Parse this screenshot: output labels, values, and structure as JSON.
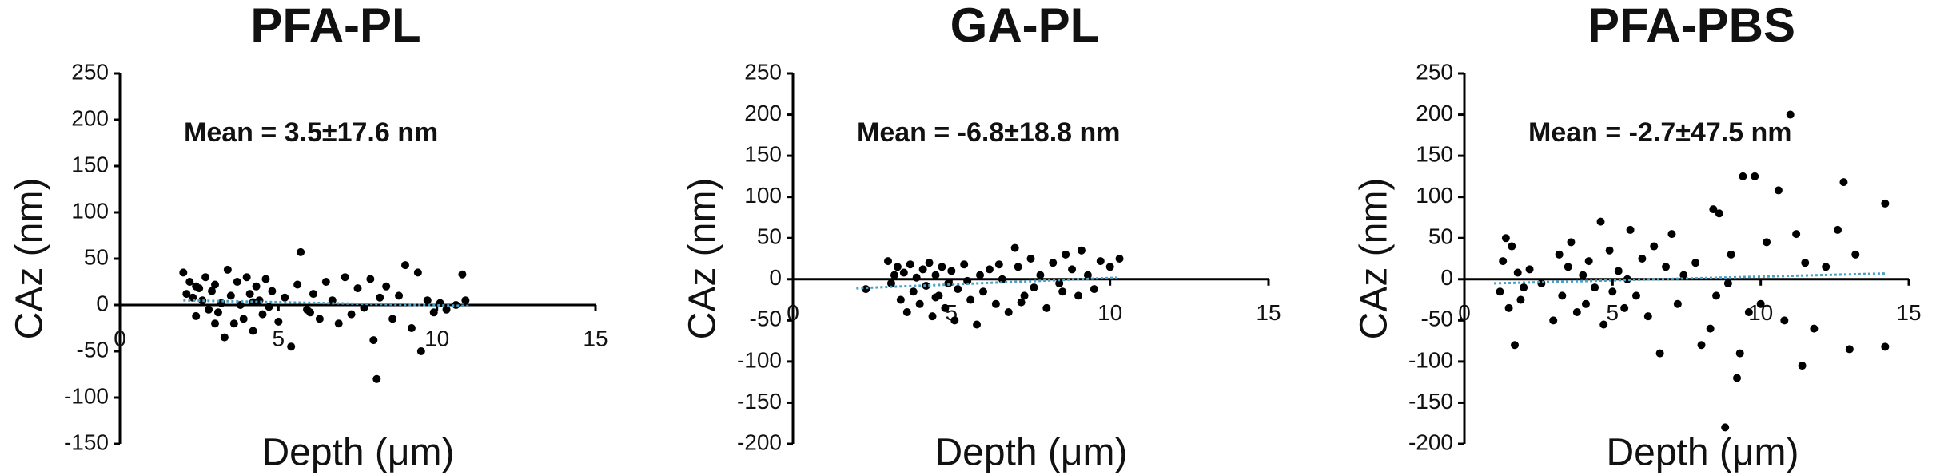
{
  "chart_data": [
    {
      "type": "scatter",
      "title": "PFA-PL",
      "annotation": "Mean = 3.5±17.6 nm",
      "xlabel": "Depth (μm)",
      "ylabel": "CAz (nm)",
      "xlim": [
        0,
        15
      ],
      "xticks": [
        0,
        5,
        10,
        15
      ],
      "ylim": [
        -150,
        250
      ],
      "yticks": [
        -150,
        -100,
        -50,
        0,
        50,
        100,
        150,
        200,
        250
      ],
      "color": "#000000",
      "x": [
        2.0,
        2.1,
        2.2,
        2.3,
        2.4,
        2.5,
        2.6,
        2.7,
        2.8,
        2.9,
        3.0,
        3.1,
        3.2,
        3.3,
        3.4,
        3.5,
        3.6,
        3.7,
        3.8,
        3.9,
        4.0,
        4.1,
        4.2,
        4.3,
        4.4,
        4.5,
        4.6,
        4.7,
        4.8,
        5.0,
        5.2,
        5.4,
        5.6,
        5.7,
        5.9,
        6.1,
        6.3,
        6.5,
        6.7,
        6.9,
        7.1,
        7.3,
        7.5,
        7.7,
        7.9,
        8.0,
        8.1,
        8.2,
        8.4,
        8.6,
        8.8,
        9.0,
        9.2,
        9.4,
        9.5,
        9.7,
        9.9,
        10.1,
        10.3,
        10.6,
        10.8,
        10.9,
        3.0,
        4.2,
        6.0,
        2.4
      ],
      "values": [
        35,
        12,
        25,
        8,
        -12,
        18,
        5,
        30,
        -5,
        15,
        22,
        -8,
        2,
        -35,
        38,
        10,
        -20,
        25,
        0,
        -15,
        30,
        12,
        -28,
        20,
        5,
        -10,
        28,
        -2,
        15,
        -18,
        8,
        -45,
        22,
        57,
        -5,
        12,
        -15,
        25,
        5,
        -20,
        30,
        -10,
        18,
        -3,
        28,
        -38,
        -80,
        8,
        20,
        -15,
        10,
        43,
        -25,
        35,
        -50,
        5,
        -8,
        2,
        -5,
        0,
        33,
        5,
        -20,
        3,
        -8,
        20
      ],
      "trendline": {
        "x": [
          2,
          11
        ],
        "values": [
          5,
          -1
        ],
        "color": "#4a9fc4"
      }
    },
    {
      "type": "scatter",
      "title": "GA-PL",
      "annotation": "Mean = -6.8±18.8 nm",
      "xlabel": "Depth (μm)",
      "ylabel": "CAz (nm)",
      "xlim": [
        0,
        15
      ],
      "xticks": [
        0,
        5,
        10,
        15
      ],
      "ylim": [
        -200,
        250
      ],
      "yticks": [
        -200,
        -150,
        -100,
        -50,
        0,
        50,
        100,
        150,
        200,
        250
      ],
      "color": "#000000",
      "x": [
        2.3,
        3.0,
        3.1,
        3.3,
        3.4,
        3.5,
        3.6,
        3.7,
        3.8,
        3.9,
        4.0,
        4.1,
        4.2,
        4.3,
        4.4,
        4.5,
        4.6,
        4.7,
        4.8,
        4.9,
        5.0,
        5.1,
        5.2,
        5.4,
        5.6,
        5.8,
        5.9,
        6.0,
        6.2,
        6.4,
        6.6,
        6.8,
        7.0,
        7.1,
        7.3,
        7.5,
        7.6,
        7.8,
        8.0,
        8.2,
        8.4,
        8.6,
        8.8,
        9.0,
        9.1,
        9.3,
        9.5,
        9.7,
        10.0,
        10.3,
        3.2,
        4.5,
        6.5,
        7.2,
        8.5,
        5.5
      ],
      "values": [
        -12,
        22,
        -5,
        15,
        -25,
        8,
        -40,
        18,
        -15,
        2,
        -30,
        12,
        -8,
        20,
        -45,
        5,
        -20,
        15,
        -35,
        -5,
        10,
        -50,
        -12,
        18,
        -25,
        -55,
        5,
        -15,
        12,
        -30,
        0,
        -40,
        38,
        15,
        -20,
        25,
        -10,
        5,
        -35,
        20,
        -5,
        30,
        12,
        -20,
        35,
        5,
        -12,
        22,
        15,
        25,
        5,
        -22,
        18,
        -28,
        -15,
        -2
      ],
      "trendline": {
        "x": [
          2,
          10.3
        ],
        "values": [
          -11,
          2
        ],
        "color": "#4a9fc4"
      }
    },
    {
      "type": "scatter",
      "title": "PFA-PBS",
      "annotation": "Mean = -2.7±47.5 nm",
      "xlabel": "Depth (μm)",
      "ylabel": "CAz (nm)",
      "xlim": [
        0,
        15
      ],
      "xticks": [
        0,
        5,
        10,
        15
      ],
      "ylim": [
        -200,
        250
      ],
      "yticks": [
        -200,
        -150,
        -100,
        -50,
        0,
        50,
        100,
        150,
        200,
        250
      ],
      "color": "#000000",
      "x": [
        1.2,
        1.3,
        1.4,
        1.5,
        1.6,
        1.7,
        1.8,
        1.9,
        2.2,
        2.6,
        3.0,
        3.2,
        3.3,
        3.5,
        3.6,
        3.8,
        4.0,
        4.1,
        4.2,
        4.4,
        4.6,
        4.7,
        4.9,
        5.0,
        5.2,
        5.4,
        5.6,
        5.8,
        6.0,
        6.2,
        6.4,
        6.6,
        6.8,
        7.0,
        7.2,
        7.4,
        8.0,
        8.3,
        8.4,
        8.5,
        8.6,
        8.8,
        8.9,
        9.0,
        9.2,
        9.4,
        9.6,
        9.8,
        10.0,
        10.2,
        10.6,
        10.8,
        11.0,
        11.2,
        11.4,
        11.5,
        11.8,
        12.2,
        12.6,
        12.8,
        13.0,
        13.2,
        14.2,
        14.2,
        2.0,
        5.5,
        7.8,
        9.3
      ],
      "values": [
        -15,
        22,
        50,
        -35,
        40,
        -80,
        8,
        -25,
        12,
        -5,
        -50,
        30,
        -20,
        15,
        45,
        -40,
        5,
        -30,
        22,
        -10,
        70,
        -55,
        35,
        -15,
        10,
        -35,
        60,
        -20,
        25,
        -45,
        40,
        -90,
        15,
        55,
        -30,
        5,
        -80,
        -60,
        85,
        -20,
        80,
        -180,
        -5,
        30,
        -120,
        125,
        -40,
        125,
        -30,
        45,
        108,
        -50,
        200,
        55,
        -105,
        20,
        -60,
        15,
        60,
        118,
        -85,
        30,
        92,
        -82,
        -10,
        0,
        20,
        -90
      ],
      "trendline": {
        "x": [
          1,
          14.2
        ],
        "values": [
          -5,
          7
        ],
        "color": "#4a9fc4"
      }
    }
  ]
}
